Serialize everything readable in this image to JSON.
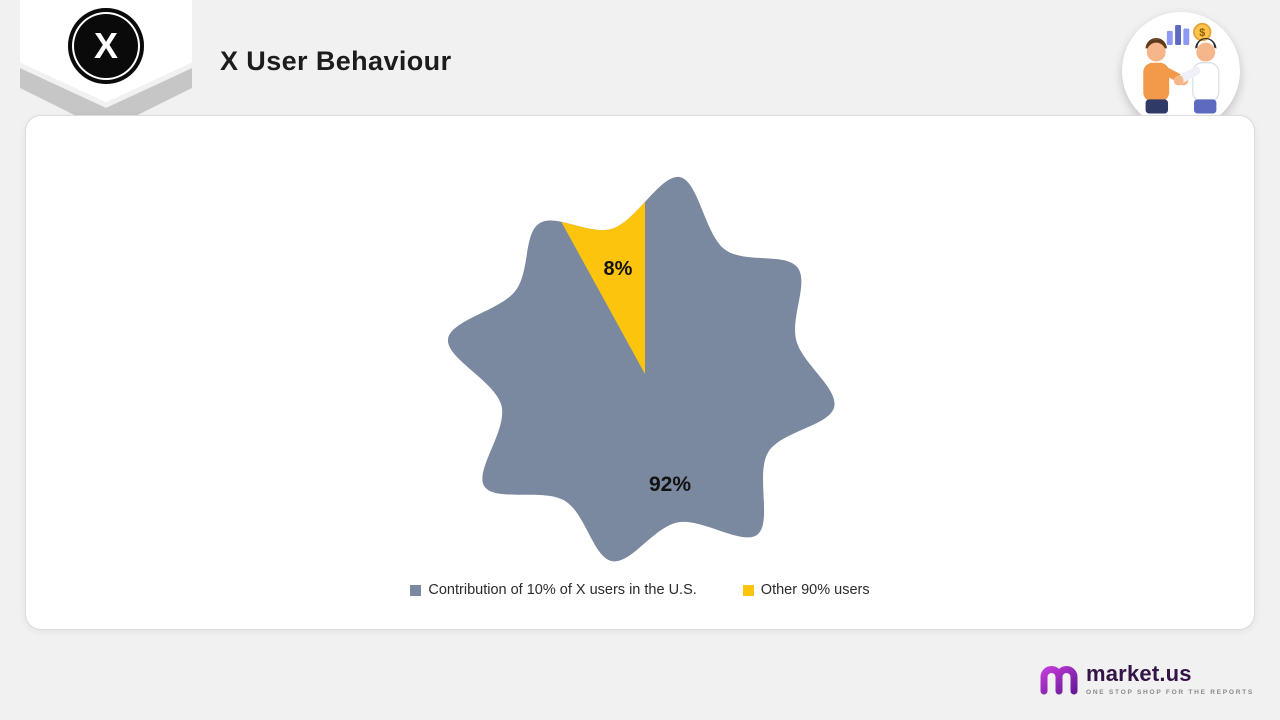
{
  "header": {
    "title": "X User Behaviour"
  },
  "badge": {
    "icon": "x-logo",
    "letter": "X"
  },
  "chart_data": {
    "type": "pie",
    "shape": "blob",
    "title": "",
    "legend_position": "bottom",
    "slices": [
      {
        "label": "Contribution of 10% of X users in the U.S.",
        "value": 92,
        "display": "92%",
        "color": "#7A89A0"
      },
      {
        "label": "Other 90% users",
        "value": 8,
        "display": "8%",
        "color": "#FCC40D"
      }
    ]
  },
  "branding": {
    "name": "market.us",
    "tagline": "ONE STOP SHOP FOR THE REPORTS"
  }
}
